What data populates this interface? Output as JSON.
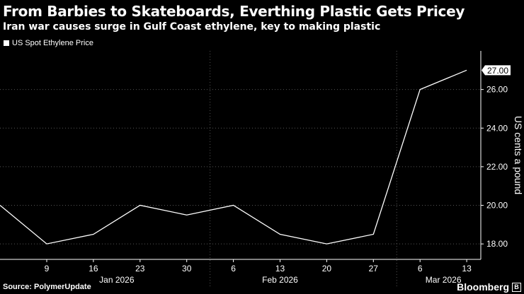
{
  "header": {
    "title": "From Barbies to Skateboards, Everthing Plastic Gets Pricey",
    "subtitle": "Iran war causes surge in Gulf Coast ethylene, key to making plastic"
  },
  "legend": {
    "label": "US Spot Ethylene Price"
  },
  "footer": {
    "source": "Source: PolymerUpdate",
    "brand": "Bloomberg"
  },
  "colors": {
    "background": "#000000",
    "line": "#ffffff",
    "grid": "#555555"
  },
  "chart_data": {
    "type": "line",
    "title": "From Barbies to Skateboards, Everthing Plastic Gets Pricey",
    "subtitle": "Iran war causes surge in Gulf Coast ethylene, key to making plastic",
    "xlabel": "",
    "ylabel": "US cents a pound",
    "ylim": [
      17.2,
      28.0
    ],
    "yticks": [
      18.0,
      20.0,
      22.0,
      24.0,
      26.0
    ],
    "ytick_labels": [
      "18.00",
      "20.00",
      "22.00",
      "24.00",
      "26.00"
    ],
    "x_tick_labels": [
      "9",
      "16",
      "23",
      "30",
      "6",
      "13",
      "20",
      "27",
      "6",
      "13"
    ],
    "month_labels": [
      {
        "label": "Jan 2026",
        "center_index": 1.5
      },
      {
        "label": "Feb 2026",
        "center_index": 5
      },
      {
        "label": "Mar 2026",
        "center_index": 8.5
      }
    ],
    "month_separators": [
      3.5,
      7.5
    ],
    "x_start_index": -1,
    "series": [
      {
        "name": "US Spot Ethylene Price",
        "x": [
          -1,
          0,
          1,
          2,
          3,
          4,
          5,
          6,
          7,
          8,
          9
        ],
        "values": [
          20.0,
          18.0,
          18.5,
          20.0,
          19.5,
          20.0,
          18.5,
          18.0,
          18.5,
          26.0,
          27.0
        ]
      }
    ],
    "last_value_label": "27.00",
    "grid": true,
    "legend_position": "top-left"
  }
}
